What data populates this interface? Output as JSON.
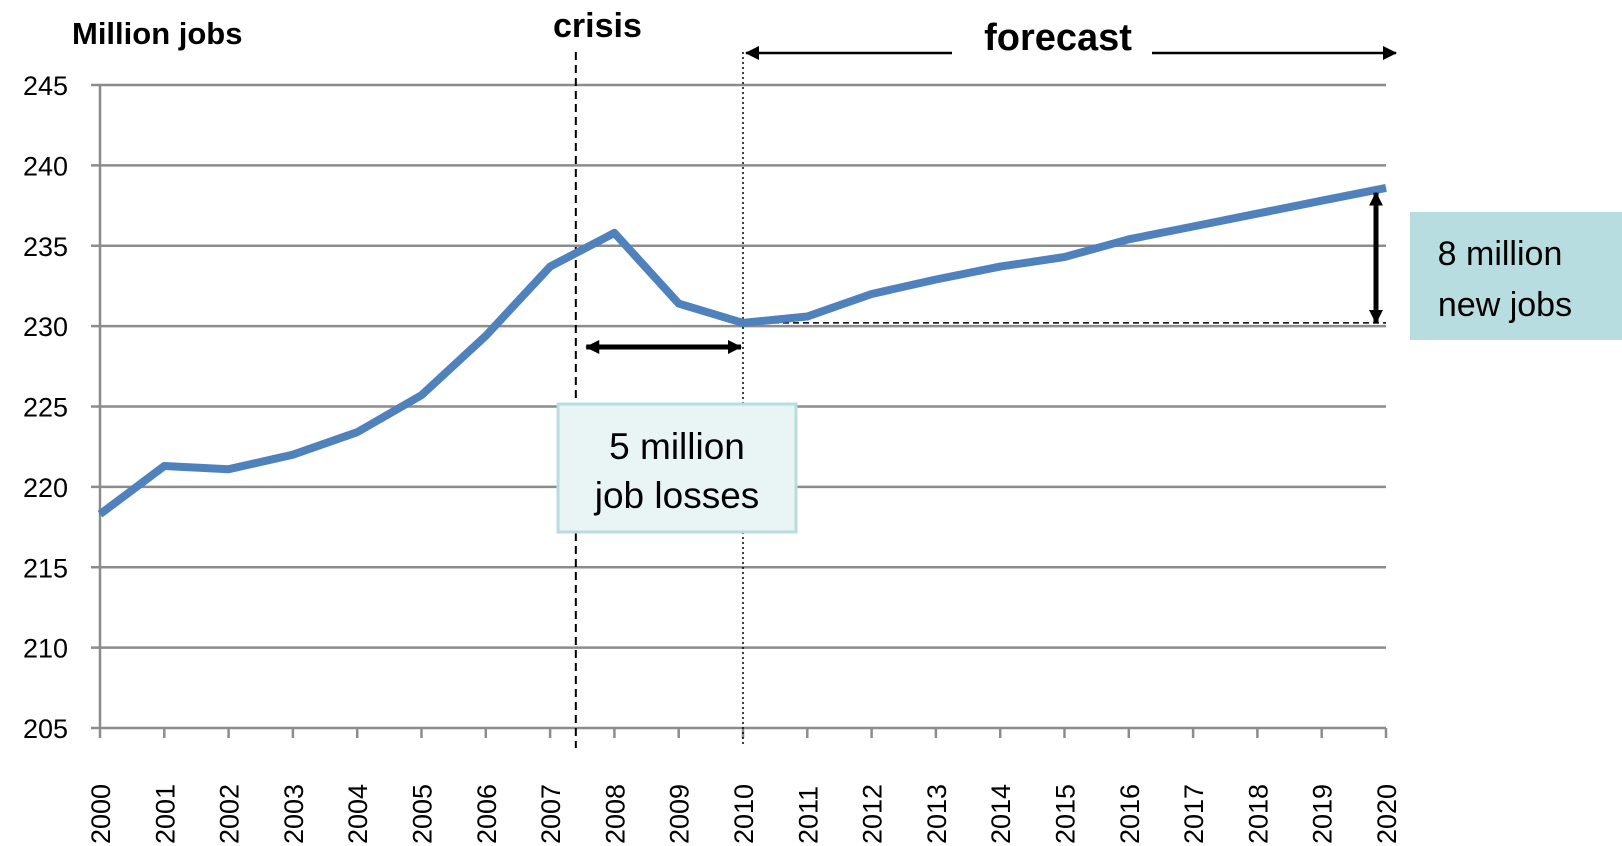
{
  "chart_data": {
    "type": "line",
    "ylabel": "Million jobs",
    "ylim": [
      205,
      245
    ],
    "yticks": [
      205,
      210,
      215,
      220,
      225,
      230,
      235,
      240,
      245
    ],
    "grid": true,
    "line_color": "#4f81bd",
    "x": [
      "2000",
      "2001",
      "2002",
      "2003",
      "2004",
      "2005",
      "2006",
      "2007",
      "2008",
      "2009",
      "2010",
      "2011",
      "2012",
      "2013",
      "2014",
      "2015",
      "2016",
      "2017",
      "2018",
      "2019",
      "2020"
    ],
    "series": [
      {
        "values": [
          218.3,
          221.3,
          221.1,
          222.0,
          223.4,
          225.7,
          229.4,
          233.7,
          235.8,
          231.4,
          230.2,
          230.6,
          232.0,
          232.9,
          233.7,
          234.3,
          235.4,
          236.2,
          237.0,
          237.8,
          238.6
        ]
      }
    ],
    "annotations": {
      "crisis_label": "crisis",
      "crisis_x": 2007.4,
      "forecast_label": "forecast",
      "forecast_start_x": 2010,
      "forecast_end_x": 2020,
      "job_losses_line1": "5 million",
      "job_losses_line2": "job losses",
      "job_losses_from_x": 2007.5,
      "job_losses_to_x": 2010,
      "job_losses_y": 228.7,
      "new_jobs_line1": "8 million",
      "new_jobs_line2": "new jobs",
      "new_jobs_from_y": 230.2,
      "new_jobs_to_y": 238.3,
      "baseline_value": 230.2,
      "box_color": "#b7dde0"
    }
  }
}
